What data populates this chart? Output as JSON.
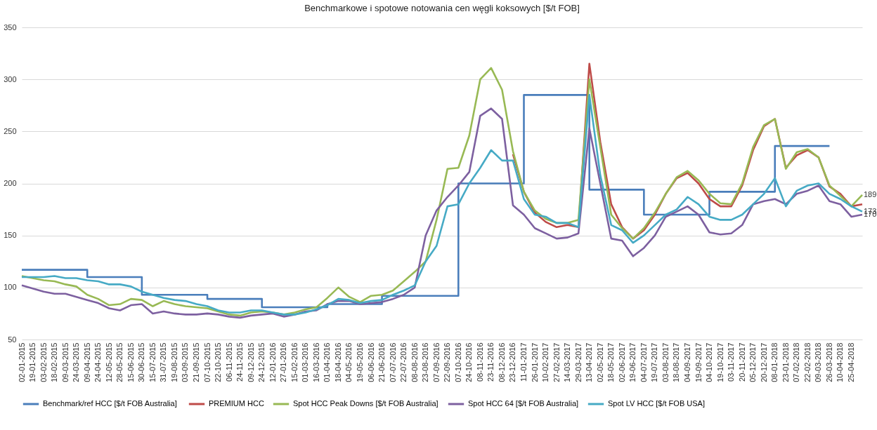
{
  "chart_data": {
    "type": "line",
    "title": "Benchmarkowe i spotowe  notowania cen węgli koksowych [$/t FOB]",
    "categories": [
      "02-01-2015",
      "19-01-2015",
      "03-02-2015",
      "18-02-2015",
      "09-03-2015",
      "24-03-2015",
      "09-04-2015",
      "24-04-2015",
      "12-05-2015",
      "28-05-2015",
      "15-06-2015",
      "30-06-2015",
      "15-07-2015",
      "31-07-2015",
      "19-08-2015",
      "03-09-2015",
      "21-09-2015",
      "07-10-2015",
      "22-10-2015",
      "06-11-2015",
      "24-11-2015",
      "09-12-2015",
      "24-12-2015",
      "12-01-2016",
      "27-01-2016",
      "15-02-2016",
      "01-03-2016",
      "16-03-2016",
      "01-04-2016",
      "18-04-2016",
      "04-05-2016",
      "19-05-2016",
      "06-06-2016",
      "21-06-2016",
      "07-07-2016",
      "22-07-2016",
      "08-08-2016",
      "23-08-2016",
      "07-09-2016",
      "22-09-2016",
      "07-10-2016",
      "24-10-2016",
      "08-11-2016",
      "23-11-2016",
      "08-12-2016",
      "23-12-2016",
      "11-01-2017",
      "26-01-2017",
      "10-02-2017",
      "27-02-2017",
      "14-03-2017",
      "29-03-2017",
      "13-04-2017",
      "02-05-2017",
      "18-05-2017",
      "02-06-2017",
      "19-06-2017",
      "04-07-2017",
      "19-07-2017",
      "03-08-2017",
      "18-08-2017",
      "04-09-2017",
      "19-09-2017",
      "04-10-2017",
      "19-10-2017",
      "03-11-2017",
      "20-11-2017",
      "05-12-2017",
      "20-12-2017",
      "08-01-2018",
      "23-01-2018",
      "07-02-2018",
      "22-02-2018",
      "09-03-2018",
      "26-03-2018",
      "10-04-2018",
      "25-04-2018",
      null
    ],
    "ylim": [
      50,
      350
    ],
    "yticks": [
      50,
      100,
      150,
      200,
      250,
      300,
      350
    ],
    "grid": "y",
    "legend": "bottom",
    "series": [
      {
        "name": "Benchmark/ref  HCC [$/t FOB Australia]",
        "type": "step",
        "color": "#4a7ebb",
        "values": [
          117,
          117,
          117,
          117,
          117,
          117,
          110,
          110,
          110,
          110,
          110,
          93,
          93,
          93,
          93,
          93,
          93,
          89,
          89,
          89,
          89,
          89,
          81,
          81,
          81,
          81,
          81,
          81,
          84,
          84,
          84,
          84,
          84,
          92,
          92,
          92,
          92,
          92,
          92,
          92,
          200,
          200,
          200,
          200,
          200,
          200,
          285,
          285,
          285,
          285,
          285,
          285,
          194,
          194,
          194,
          194,
          194,
          170,
          170,
          170,
          170,
          170,
          170,
          192,
          192,
          192,
          192,
          192,
          192,
          236,
          236,
          236,
          236,
          236,
          236,
          null,
          null,
          null
        ]
      },
      {
        "name": "PREMIUM HCC",
        "color": "#be4b48",
        "values": [
          null,
          null,
          null,
          null,
          null,
          null,
          null,
          null,
          null,
          null,
          null,
          null,
          null,
          null,
          null,
          null,
          null,
          null,
          null,
          null,
          null,
          null,
          null,
          null,
          null,
          null,
          null,
          null,
          null,
          null,
          null,
          null,
          null,
          null,
          null,
          null,
          null,
          null,
          null,
          null,
          null,
          null,
          null,
          null,
          null,
          228,
          192,
          172,
          163,
          158,
          160,
          158,
          315,
          240,
          180,
          158,
          147,
          155,
          170,
          190,
          205,
          210,
          200,
          185,
          178,
          178,
          198,
          232,
          255,
          262,
          215,
          227,
          232,
          225,
          197,
          190,
          178,
          180
        ]
      },
      {
        "name": "Spot HCC Peak Downs [$/t FOB Australia]",
        "color": "#98b954",
        "values": [
          111,
          109,
          107,
          106,
          103,
          101,
          93,
          89,
          83,
          84,
          89,
          88,
          82,
          87,
          84,
          82,
          81,
          80,
          77,
          74,
          73,
          76,
          77,
          76,
          74,
          76,
          79,
          81,
          90,
          100,
          91,
          86,
          92,
          93,
          97,
          106,
          115,
          125,
          165,
          214,
          215,
          246,
          300,
          311,
          290,
          231,
          192,
          174,
          166,
          162,
          162,
          165,
          300,
          235,
          170,
          157,
          147,
          157,
          172,
          190,
          206,
          212,
          203,
          190,
          181,
          180,
          200,
          235,
          256,
          262,
          214,
          230,
          233,
          225,
          198,
          188,
          178,
          189
        ],
        "value_labels": [
          null,
          null,
          null,
          null,
          null,
          null,
          null,
          null,
          null,
          null,
          null,
          null,
          null,
          null,
          null,
          null,
          null,
          null,
          null,
          null,
          null,
          null,
          null,
          null,
          null,
          null,
          null,
          null,
          null,
          null,
          null,
          null,
          null,
          null,
          null,
          null,
          null,
          null,
          null,
          null,
          null,
          null,
          null,
          null,
          null,
          null,
          null,
          null,
          null,
          null,
          null,
          null,
          null,
          null,
          null,
          null,
          null,
          null,
          null,
          null,
          null,
          null,
          null,
          null,
          null,
          null,
          null,
          null,
          null,
          null,
          null,
          null,
          null,
          null,
          null,
          null,
          null,
          "189"
        ]
      },
      {
        "name": "Spot HCC 64 [$/t FOB Australia]",
        "color": "#7d60a0",
        "values": [
          102,
          99,
          96,
          94,
          94,
          91,
          88,
          85,
          80,
          78,
          83,
          84,
          75,
          77,
          75,
          74,
          74,
          75,
          74,
          72,
          71,
          73,
          74,
          75,
          72,
          74,
          77,
          78,
          84,
          87,
          87,
          84,
          85,
          86,
          89,
          93,
          100,
          150,
          174,
          187,
          198,
          211,
          265,
          272,
          262,
          179,
          170,
          157,
          152,
          147,
          148,
          152,
          253,
          200,
          147,
          145,
          130,
          138,
          150,
          168,
          173,
          178,
          170,
          153,
          151,
          152,
          160,
          180,
          183,
          185,
          180,
          190,
          193,
          198,
          183,
          180,
          168,
          170
        ],
        "value_labels": [
          null,
          null,
          null,
          null,
          null,
          null,
          null,
          null,
          null,
          null,
          null,
          null,
          null,
          null,
          null,
          null,
          null,
          null,
          null,
          null,
          null,
          null,
          null,
          null,
          null,
          null,
          null,
          null,
          null,
          null,
          null,
          null,
          null,
          null,
          null,
          null,
          null,
          null,
          null,
          null,
          null,
          null,
          null,
          null,
          null,
          null,
          null,
          null,
          null,
          null,
          null,
          null,
          null,
          null,
          null,
          null,
          null,
          null,
          null,
          null,
          null,
          null,
          null,
          null,
          null,
          null,
          null,
          null,
          null,
          null,
          null,
          null,
          null,
          null,
          null,
          null,
          null,
          "170"
        ]
      },
      {
        "name": "Spot LV HCC [$/t FOB USA]",
        "color": "#46aac5",
        "values": [
          110,
          110,
          110,
          111,
          109,
          109,
          107,
          106,
          103,
          103,
          101,
          96,
          93,
          90,
          88,
          87,
          84,
          82,
          78,
          76,
          76,
          78,
          78,
          76,
          74,
          74,
          76,
          79,
          83,
          89,
          88,
          85,
          87,
          88,
          93,
          97,
          102,
          125,
          140,
          178,
          180,
          200,
          215,
          232,
          222,
          222,
          185,
          170,
          168,
          162,
          162,
          158,
          285,
          208,
          160,
          155,
          143,
          150,
          160,
          170,
          175,
          187,
          180,
          168,
          165,
          165,
          170,
          180,
          190,
          205,
          178,
          193,
          198,
          200,
          190,
          185,
          178,
          173
        ],
        "value_labels": [
          null,
          null,
          null,
          null,
          null,
          null,
          null,
          null,
          null,
          null,
          null,
          null,
          null,
          null,
          null,
          null,
          null,
          null,
          null,
          null,
          null,
          null,
          null,
          null,
          null,
          null,
          null,
          null,
          null,
          null,
          null,
          null,
          null,
          null,
          null,
          null,
          null,
          null,
          null,
          null,
          null,
          null,
          null,
          null,
          null,
          null,
          null,
          null,
          null,
          null,
          null,
          null,
          null,
          null,
          null,
          null,
          null,
          null,
          null,
          null,
          null,
          null,
          null,
          null,
          null,
          null,
          null,
          null,
          null,
          null,
          null,
          null,
          null,
          null,
          null,
          null,
          null,
          "173"
        ]
      }
    ]
  }
}
